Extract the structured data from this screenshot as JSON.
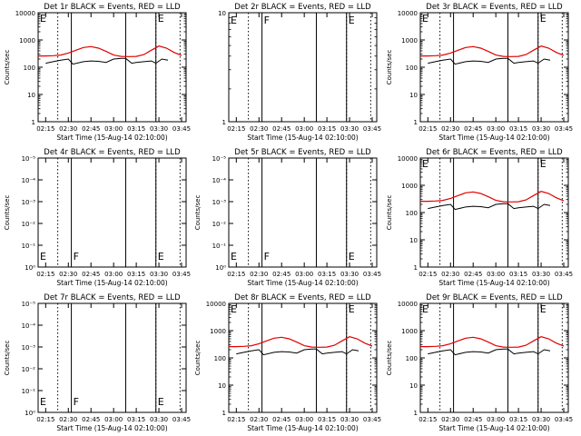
{
  "colors": {
    "events": "#000000",
    "lld": "#e00000",
    "axes": "#000000",
    "background": "#ffffff"
  },
  "time_ticks": [
    "02:15",
    "02:30",
    "02:45",
    "03:00",
    "03:15",
    "03:30",
    "03:45"
  ],
  "panels": [
    {
      "title": "Det 1r BLACK = Events, RED = LLD",
      "xlabel": "Start Time (15-Aug-14 02:10:00)",
      "ylabel": "Counts/sec",
      "yscale": "log",
      "ylim": [
        1,
        10000
      ],
      "ytick_labels": [
        "1",
        "10",
        "100",
        "1000",
        "10000"
      ],
      "markers": [
        {
          "x": "02:10",
          "label": "E"
        },
        {
          "x": "03:28",
          "label": "E"
        }
      ],
      "events_range": [
        "02:15",
        "03:38"
      ],
      "lld_range": [
        "02:10",
        "03:45"
      ]
    },
    {
      "title": "Det 2r BLACK = Events, RED = LLD",
      "xlabel": "Start Time (15-Aug-14 02:10:00)",
      "ylabel": "",
      "yscale": "log",
      "ylim": [
        1,
        10
      ],
      "ytick_labels": [
        "1",
        "10"
      ],
      "markers": [
        {
          "x": "02:10",
          "label": "E"
        },
        {
          "x": "02:32",
          "label": "F"
        },
        {
          "x": "03:28",
          "label": "E"
        }
      ],
      "events_range": null,
      "lld_range": null
    },
    {
      "title": "Det 3r BLACK = Events, RED = LLD",
      "xlabel": "Start Time (15-Aug-14 02:10:00)",
      "ylabel": "Counts/sec",
      "yscale": "log",
      "ylim": [
        1,
        10000
      ],
      "ytick_labels": [
        "1",
        "10",
        "100",
        "1000",
        "10000"
      ],
      "markers": [
        {
          "x": "02:10",
          "label": "E"
        },
        {
          "x": "03:28",
          "label": "E"
        }
      ],
      "events_range": [
        "02:15",
        "03:38"
      ],
      "lld_range": [
        "02:10",
        "03:45"
      ]
    },
    {
      "title": "Det 4r BLACK = Events, RED = LLD",
      "xlabel": "Start Time (15-Aug-14 02:10:00)",
      "ylabel": "Counts/sec",
      "yscale": "linear",
      "ylim": [
        1,
        10
      ],
      "ytick_labels": [
        "10⁰",
        "10⁻¹",
        "10⁻²",
        "10⁻³",
        "10⁻⁴",
        "10⁻⁵"
      ],
      "markers": [
        {
          "x": "02:10",
          "label": "E"
        },
        {
          "x": "02:32",
          "label": "F"
        },
        {
          "x": "03:28",
          "label": "E"
        }
      ],
      "events_range": null,
      "lld_range": null
    },
    {
      "title": "Det 5r BLACK = Events, RED = LLD",
      "xlabel": "Start Time (15-Aug-14 02:10:00)",
      "ylabel": "Counts/sec",
      "yscale": "linear",
      "ylim": [
        1,
        10
      ],
      "ytick_labels": [
        "10⁰",
        "10⁻¹",
        "10⁻²",
        "10⁻³",
        "10⁻⁴",
        "10⁻⁵"
      ],
      "markers": [
        {
          "x": "02:10",
          "label": "E"
        },
        {
          "x": "02:32",
          "label": "F"
        },
        {
          "x": "03:28",
          "label": "E"
        }
      ],
      "events_range": null,
      "lld_range": null
    },
    {
      "title": "Det 6r BLACK = Events, RED = LLD",
      "xlabel": "Start Time (15-Aug-14 02:10:00)",
      "ylabel": "Counts/sec",
      "yscale": "log",
      "ylim": [
        1,
        10000
      ],
      "ytick_labels": [
        "1",
        "10",
        "100",
        "1000",
        "10000"
      ],
      "markers": [
        {
          "x": "02:10",
          "label": "E"
        },
        {
          "x": "03:28",
          "label": "E"
        }
      ],
      "events_range": [
        "02:15",
        "03:38"
      ],
      "lld_range": [
        "02:10",
        "03:45"
      ]
    },
    {
      "title": "Det 7r BLACK = Events, RED = LLD",
      "xlabel": "Start Time (15-Aug-14 02:10:00)",
      "ylabel": "Counts/sec",
      "yscale": "linear",
      "ylim": [
        1,
        10
      ],
      "ytick_labels": [
        "10⁰",
        "10⁻¹",
        "10⁻²",
        "10⁻³",
        "10⁻⁴",
        "10⁻⁵"
      ],
      "markers": [
        {
          "x": "02:10",
          "label": "E"
        },
        {
          "x": "02:32",
          "label": "F"
        },
        {
          "x": "03:28",
          "label": "E"
        }
      ],
      "events_range": null,
      "lld_range": null
    },
    {
      "title": "Det 8r BLACK = Events, RED = LLD",
      "xlabel": "Start Time (15-Aug-14 02:10:00)",
      "ylabel": "Counts/sec",
      "yscale": "log",
      "ylim": [
        1,
        10000
      ],
      "ytick_labels": [
        "1",
        "10",
        "100",
        "1000",
        "10000"
      ],
      "markers": [
        {
          "x": "02:10",
          "label": "E"
        },
        {
          "x": "03:28",
          "label": "E"
        }
      ],
      "events_range": [
        "02:15",
        "03:38"
      ],
      "lld_range": [
        "02:10",
        "03:45"
      ]
    },
    {
      "title": "Det 9r BLACK = Events, RED = LLD",
      "xlabel": "Start Time (15-Aug-14 02:10:00)",
      "ylabel": "Counts/sec",
      "yscale": "log",
      "ylim": [
        1,
        10000
      ],
      "ytick_labels": [
        "1",
        "10",
        "100",
        "1000",
        "10000"
      ],
      "markers": [
        {
          "x": "02:10",
          "label": "E"
        },
        {
          "x": "03:28",
          "label": "E"
        }
      ],
      "events_range": [
        "02:15",
        "03:38"
      ],
      "lld_range": [
        "02:10",
        "03:45"
      ]
    }
  ],
  "chart_data": {
    "type": "line",
    "x_unit": "time (15-Aug-14)",
    "x_range": [
      "02:10",
      "03:48"
    ],
    "dotted_lines": [
      "02:10",
      "02:23",
      "03:28",
      "03:44"
    ],
    "solid_lines": [
      "02:32",
      "03:08",
      "03:28"
    ],
    "series": [
      {
        "name": "Events",
        "x": [
          "02:15",
          "02:20",
          "02:25",
          "02:30",
          "02:33",
          "02:40",
          "02:45",
          "02:50",
          "02:55",
          "03:00",
          "03:05",
          "03:08",
          "03:12",
          "03:15",
          "03:20",
          "03:25",
          "03:28",
          "03:32",
          "03:36"
        ],
        "values": [
          140,
          160,
          180,
          200,
          130,
          160,
          170,
          165,
          150,
          200,
          210,
          210,
          140,
          150,
          160,
          170,
          140,
          200,
          180
        ]
      },
      {
        "name": "LLD",
        "x": [
          "02:10",
          "02:15",
          "02:20",
          "02:25",
          "02:30",
          "02:35",
          "02:40",
          "02:45",
          "02:50",
          "02:55",
          "03:00",
          "03:05",
          "03:10",
          "03:15",
          "03:20",
          "03:25",
          "03:30",
          "03:35",
          "03:40",
          "03:45"
        ],
        "values": [
          260,
          260,
          265,
          280,
          330,
          420,
          530,
          570,
          500,
          380,
          280,
          250,
          245,
          250,
          290,
          420,
          600,
          500,
          350,
          270
        ]
      }
    ]
  }
}
